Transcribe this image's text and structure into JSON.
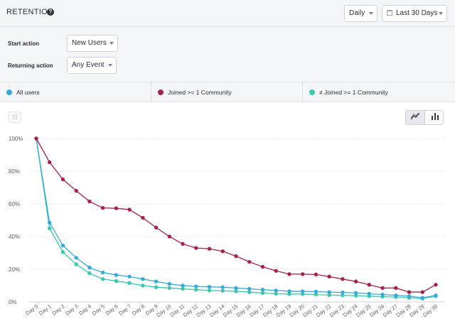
{
  "header": {
    "title": "RETENTION",
    "help_icon": "help-circle-icon",
    "interval_select": "Daily",
    "date_range_select": "Last 30 Days"
  },
  "filters": {
    "start_action_label": "Start action",
    "start_action_value": "New Users",
    "returning_action_label": "Returning action",
    "returning_action_value": "Any Event"
  },
  "chart_toolbar": {
    "left_icon": "retention-grid-icon",
    "line_view_icon": "line-chart-icon",
    "bar_view_icon": "bar-chart-icon"
  },
  "chart_data": {
    "type": "line",
    "x": [
      "Day 0",
      "Day 1",
      "Day 2",
      "Day 3",
      "Day 4",
      "Day 5",
      "Day 6",
      "Day 7",
      "Day 8",
      "Day 9",
      "Day 10",
      "Day 11",
      "Day 12",
      "Day 13",
      "Day 14",
      "Day 15",
      "Day 16",
      "Day 17",
      "Day 18",
      "Day 19",
      "Day 20",
      "Day 21",
      "Day 22",
      "Day 23",
      "Day 24",
      "Day 25",
      "Day 26",
      "Day 27",
      "Day 28",
      "Day 29",
      "Day 30"
    ],
    "yticks": [
      "0%",
      "20%",
      "40%",
      "60%",
      "80%",
      "100%"
    ],
    "ylim": [
      0,
      100
    ],
    "grid": true,
    "series": [
      {
        "name": "All users",
        "color": "#3aa8d8",
        "values": [
          100,
          48.5,
          34.5,
          27,
          21,
          18,
          16.5,
          15.5,
          14,
          12.5,
          11,
          10,
          9.5,
          9.2,
          9,
          8.5,
          8,
          7.5,
          7,
          6.5,
          6.5,
          6.3,
          6,
          5.8,
          5.5,
          5,
          4.5,
          4,
          3.5,
          2.5,
          4
        ]
      },
      {
        "name": "Joined >= 1 Community",
        "color": "#a3234a",
        "values": [
          100,
          85.5,
          75,
          68,
          61.5,
          57.5,
          57.3,
          56.5,
          51.5,
          45.5,
          40,
          35.5,
          33,
          32.5,
          31,
          28,
          24.5,
          21.5,
          19,
          17,
          17,
          16.8,
          15.5,
          14,
          12.5,
          10.5,
          8.5,
          8.5,
          6,
          6,
          10.5
        ]
      },
      {
        "name": "≠ Joined >= 1 Community",
        "color": "#3cc6ab",
        "values": [
          100,
          45,
          30.5,
          23,
          17.5,
          14,
          12.8,
          11.5,
          10,
          9,
          8.5,
          8,
          7.5,
          7,
          6.8,
          6.5,
          6,
          5.5,
          5,
          4.8,
          4.8,
          4.5,
          4.2,
          4,
          3.8,
          3.5,
          3.2,
          3,
          2.5,
          2,
          3.5
        ]
      }
    ]
  }
}
